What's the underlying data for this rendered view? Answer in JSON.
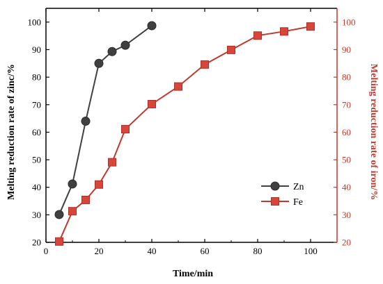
{
  "chart_data": {
    "type": "line",
    "xlabel": "Time/min",
    "ylabel_left": "Melting reduction rate of zinc/%",
    "ylabel_right": "Melting reduction rate of iron/%",
    "xlim": [
      0,
      110
    ],
    "ylim_left": [
      20,
      105
    ],
    "ylim_right": [
      20,
      105
    ],
    "x_ticks": [
      0,
      20,
      40,
      60,
      80,
      100
    ],
    "y_ticks": [
      20,
      30,
      40,
      50,
      60,
      70,
      80,
      90,
      100
    ],
    "grid": false,
    "legend_position": "right",
    "series": [
      {
        "name": "Zn",
        "axis": "left",
        "marker": "circle",
        "color": "#404040",
        "x": [
          5,
          10,
          15,
          20,
          25,
          30,
          40
        ],
        "y": [
          30.1,
          41.2,
          64.0,
          85.0,
          89.3,
          91.6,
          98.7
        ]
      },
      {
        "name": "Fe",
        "axis": "right",
        "marker": "square",
        "color": "#d9453b",
        "x": [
          5,
          10,
          15,
          20,
          25,
          30,
          40,
          50,
          60,
          70,
          80,
          90,
          100
        ],
        "y": [
          20.3,
          31.3,
          35.4,
          41.0,
          49.1,
          61.1,
          70.2,
          76.6,
          84.6,
          89.9,
          95.1,
          96.6,
          98.4
        ]
      }
    ]
  }
}
